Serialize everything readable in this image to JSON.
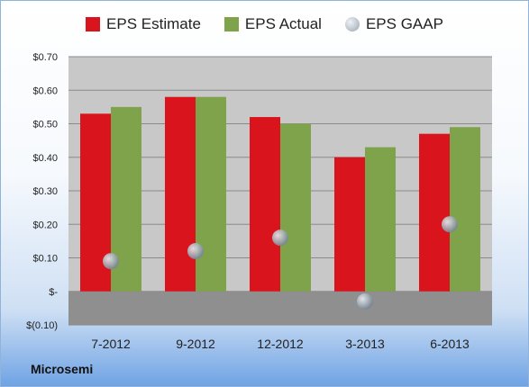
{
  "brand": "Microsemi",
  "colors": {
    "estimate": "#d9141c",
    "actual": "#7fa34a",
    "gaap": "#9aa3ad",
    "plot_bg": "#c8c8c8",
    "negative_band": "#8f8f8f"
  },
  "chart_data": {
    "type": "bar",
    "categories": [
      "7-2012",
      "9-2012",
      "12-2012",
      "3-2013",
      "6-2013"
    ],
    "series": [
      {
        "name": "EPS Estimate",
        "values": [
          0.53,
          0.58,
          0.52,
          0.4,
          0.47
        ]
      },
      {
        "name": "EPS Actual",
        "values": [
          0.55,
          0.58,
          0.5,
          0.43,
          0.49
        ]
      },
      {
        "name": "EPS GAAP",
        "values": [
          0.09,
          0.12,
          0.16,
          -0.03,
          0.2
        ]
      }
    ],
    "title": "",
    "xlabel": "",
    "ylabel": "",
    "ylim": [
      -0.1,
      0.7
    ],
    "yticks": [
      0.7,
      0.6,
      0.5,
      0.4,
      0.3,
      0.2,
      0.1,
      0,
      -0.1
    ],
    "ytick_labels": [
      "$0.70",
      "$0.60",
      "$0.50",
      "$0.40",
      "$0.30",
      "$0.20",
      "$0.10",
      "$-",
      "$(0.10)"
    ],
    "grid": true,
    "legend": "top"
  }
}
